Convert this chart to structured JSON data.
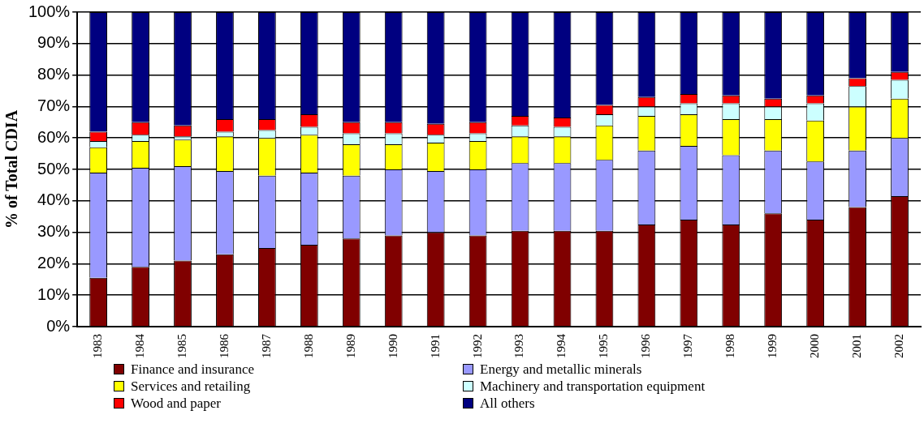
{
  "chart_data": {
    "type": "bar",
    "stacked": true,
    "ylabel": "% of Total CDIA",
    "categories": [
      "1983",
      "1984",
      "1985",
      "1986",
      "1987",
      "1988",
      "1989",
      "1990",
      "1991",
      "1992",
      "1993",
      "1994",
      "1995",
      "1996",
      "1997",
      "1998",
      "1999",
      "2000",
      "2001",
      "2002"
    ],
    "series": [
      {
        "name": "Finance and insurance",
        "color": "#800000",
        "values": [
          15.5,
          19,
          21,
          23,
          25,
          26,
          28,
          29,
          30,
          29,
          30.5,
          30.5,
          30.5,
          32.5,
          34,
          32.5,
          36,
          34,
          38,
          41.5
        ]
      },
      {
        "name": "Energy and metallic minerals",
        "color": "#9999ff",
        "values": [
          33.5,
          31.5,
          30,
          26.5,
          23,
          23,
          20,
          21,
          19.5,
          21,
          21.5,
          21.5,
          22.5,
          23.5,
          23.5,
          22,
          20,
          18.5,
          18,
          18.5
        ]
      },
      {
        "name": "Services and retailing",
        "color": "#ffff00",
        "values": [
          8,
          8.5,
          8.5,
          11,
          12,
          12,
          10,
          8,
          9,
          9,
          8.5,
          8.5,
          11,
          11,
          10,
          11.5,
          10,
          13,
          14,
          12.5
        ]
      },
      {
        "name": "Machinery and transportation equipment",
        "color": "#ccffff",
        "values": [
          2,
          2,
          1,
          1.5,
          2.5,
          2.5,
          3.5,
          3.5,
          2.5,
          2.5,
          3.5,
          3,
          3.5,
          3,
          3.5,
          5,
          4,
          5.5,
          6.5,
          6
        ]
      },
      {
        "name": "Wood and paper",
        "color": "#ff0000",
        "values": [
          3,
          4,
          3.5,
          4,
          3.5,
          4,
          3.5,
          3.5,
          3.5,
          3.5,
          3,
          3,
          3,
          3,
          3,
          2.5,
          2.5,
          2.5,
          2.5,
          2.5
        ]
      },
      {
        "name": "All others",
        "color": "#000080",
        "values": [
          38,
          35,
          36,
          34,
          34,
          32.5,
          35,
          35,
          35.5,
          35,
          33,
          33.5,
          29.5,
          27,
          26,
          26.5,
          27.5,
          26.5,
          21,
          19
        ]
      }
    ],
    "ylim": [
      0,
      100
    ],
    "yticks": [
      {
        "value": 0,
        "label": "0%"
      },
      {
        "value": 10,
        "label": "10%"
      },
      {
        "value": 20,
        "label": "20%"
      },
      {
        "value": 30,
        "label": "30%"
      },
      {
        "value": 40,
        "label": "40%"
      },
      {
        "value": 50,
        "label": "50%"
      },
      {
        "value": 60,
        "label": "60%"
      },
      {
        "value": 70,
        "label": "70%"
      },
      {
        "value": 80,
        "label": "80%"
      },
      {
        "value": 90,
        "label": "90%"
      },
      {
        "value": 100,
        "label": "100%"
      }
    ],
    "grid": "y",
    "legend": "bottom"
  }
}
